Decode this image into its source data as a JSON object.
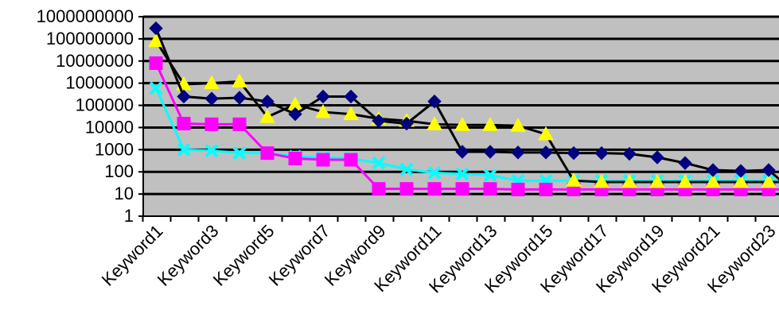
{
  "chart_data": {
    "type": "line",
    "yscale": "log",
    "ylim": [
      1,
      1000000000
    ],
    "ytick_labels": [
      "1",
      "10",
      "100",
      "1000",
      "10000",
      "100000",
      "1000000",
      "10000000",
      "100000000",
      "1000000000"
    ],
    "grid": true,
    "categories": [
      "Keyword1",
      "Keyword2",
      "Keyword3",
      "Keyword4",
      "Keyword5",
      "Keyword6",
      "Keyword7",
      "Keyword8",
      "Keyword9",
      "Keyword10",
      "Keyword11",
      "Keyword12",
      "Keyword13",
      "Keyword14",
      "Keyword15",
      "Keyword16",
      "Keyword17",
      "Keyword18",
      "Keyword19",
      "Keyword20",
      "Keyword21",
      "Keyword22",
      "Keyword23",
      "Keyword24"
    ],
    "xtick_labels": [
      "Keyword1",
      "Keyword3",
      "Keyword5",
      "Keyword7",
      "Keyword9",
      "Keyword11",
      "Keyword13",
      "Keyword15",
      "Keyword17",
      "Keyword19",
      "Keyword21",
      "Keyword23"
    ],
    "series": [
      {
        "marker": "diamond",
        "color": "#000080",
        "values": [
          300000000,
          250000,
          200000,
          220000,
          150000,
          40000,
          250000,
          250000,
          20000,
          15000,
          150000,
          800,
          800,
          750,
          750,
          700,
          700,
          650,
          450,
          250,
          120,
          110,
          120,
          10
        ]
      },
      {
        "marker": "triangle",
        "color": "#FFFF00",
        "values": [
          80000000,
          900000,
          1000000,
          1200000,
          30000,
          110000,
          50000,
          40000,
          25000,
          20000,
          14000,
          13000,
          13000,
          12000,
          5000,
          40,
          35,
          35,
          35,
          35,
          35,
          35,
          35,
          35
        ]
      },
      {
        "marker": "square",
        "color": "#FF00FF",
        "values": [
          8000000,
          15000,
          14000,
          14000,
          700,
          400,
          350,
          350,
          17,
          17,
          17,
          17,
          17,
          16,
          16,
          16,
          16,
          16,
          16,
          16,
          16,
          16,
          16,
          16
        ]
      },
      {
        "marker": "x",
        "color": "#00FFFF",
        "values": [
          600000,
          1000,
          900,
          700,
          700,
          500,
          450,
          400,
          250,
          130,
          90,
          80,
          70,
          40,
          40,
          40,
          40,
          40,
          40,
          40,
          40,
          40,
          40,
          40
        ]
      }
    ],
    "colors": {
      "plot_background": "#C0C0C0",
      "gridline": "#000000",
      "series_line": "#000000"
    }
  }
}
